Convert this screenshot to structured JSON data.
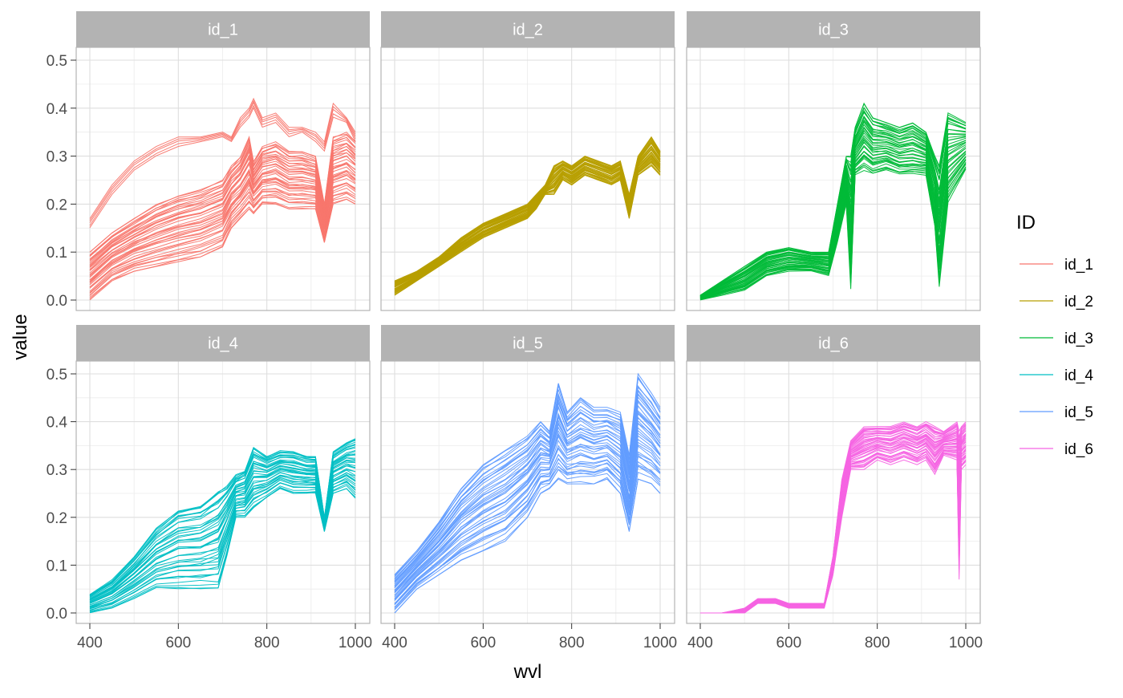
{
  "chart_data": {
    "type": "line",
    "facet": "small-multiples, 2 rows x 3 columns",
    "xlabel": "wvl",
    "ylabel": "value",
    "xlim": [
      400,
      1000
    ],
    "ylim": [
      0,
      0.5
    ],
    "x_ticks": [
      "400",
      "600",
      "800",
      "1000"
    ],
    "y_ticks": [
      "0.0",
      "0.1",
      "0.2",
      "0.3",
      "0.4",
      "0.5"
    ],
    "grid": true,
    "legend": {
      "title": "ID",
      "position": "right",
      "entries": [
        "id_1",
        "id_2",
        "id_3",
        "id_4",
        "id_5",
        "id_6"
      ]
    },
    "panels": [
      {
        "name": "id_1",
        "color": "#F8766D",
        "wavelengths": [
          400,
          450,
          500,
          550,
          600,
          650,
          700,
          720,
          740,
          760,
          770,
          790,
          820,
          850,
          880,
          910,
          930,
          950,
          980,
          1000
        ],
        "bands": [
          {
            "low": [
              0.0,
              0.04,
              0.06,
              0.07,
              0.08,
              0.09,
              0.11,
              0.15,
              0.17,
              0.19,
              0.18,
              0.2,
              0.2,
              0.19,
              0.19,
              0.19,
              0.12,
              0.2,
              0.21,
              0.2
            ],
            "high": [
              0.1,
              0.14,
              0.17,
              0.2,
              0.22,
              0.23,
              0.25,
              0.28,
              0.3,
              0.34,
              0.29,
              0.32,
              0.33,
              0.31,
              0.31,
              0.3,
              0.2,
              0.34,
              0.35,
              0.33
            ]
          },
          {
            "low": [
              0.15,
              0.22,
              0.27,
              0.3,
              0.32,
              0.33,
              0.34,
              0.33,
              0.36,
              0.38,
              0.4,
              0.36,
              0.37,
              0.34,
              0.35,
              0.33,
              0.31,
              0.38,
              0.37,
              0.33
            ],
            "high": [
              0.17,
              0.24,
              0.29,
              0.32,
              0.34,
              0.34,
              0.35,
              0.34,
              0.38,
              0.4,
              0.42,
              0.38,
              0.39,
              0.36,
              0.36,
              0.35,
              0.33,
              0.41,
              0.38,
              0.35
            ]
          }
        ]
      },
      {
        "name": "id_2",
        "color": "#B79F00",
        "wavelengths": [
          400,
          450,
          500,
          550,
          600,
          650,
          700,
          720,
          740,
          760,
          780,
          800,
          830,
          860,
          890,
          910,
          930,
          950,
          980,
          1000
        ],
        "bands": [
          {
            "low": [
              0.01,
              0.04,
              0.07,
              0.1,
              0.13,
              0.15,
              0.17,
              0.19,
              0.22,
              0.22,
              0.25,
              0.24,
              0.26,
              0.25,
              0.24,
              0.25,
              0.17,
              0.26,
              0.28,
              0.26
            ],
            "high": [
              0.04,
              0.06,
              0.09,
              0.13,
              0.16,
              0.18,
              0.2,
              0.22,
              0.24,
              0.28,
              0.29,
              0.28,
              0.3,
              0.29,
              0.28,
              0.29,
              0.22,
              0.3,
              0.34,
              0.31
            ]
          }
        ]
      },
      {
        "name": "id_3",
        "color": "#00BA38",
        "wavelengths": [
          400,
          450,
          500,
          550,
          600,
          650,
          690,
          710,
          730,
          740,
          750,
          770,
          790,
          820,
          850,
          880,
          910,
          930,
          940,
          960,
          1000
        ],
        "bands": [
          {
            "low": [
              0.0,
              0.01,
              0.02,
              0.05,
              0.06,
              0.06,
              0.05,
              0.12,
              0.2,
              0.02,
              0.26,
              0.27,
              0.26,
              0.27,
              0.26,
              0.26,
              0.26,
              0.15,
              0.02,
              0.2,
              0.27
            ],
            "high": [
              0.01,
              0.04,
              0.07,
              0.1,
              0.11,
              0.1,
              0.1,
              0.2,
              0.3,
              0.3,
              0.36,
              0.41,
              0.38,
              0.37,
              0.36,
              0.37,
              0.35,
              0.3,
              0.28,
              0.39,
              0.37
            ]
          }
        ]
      },
      {
        "name": "id_4",
        "color": "#00BFC4",
        "wavelengths": [
          400,
          450,
          500,
          550,
          600,
          650,
          690,
          710,
          730,
          750,
          770,
          800,
          830,
          860,
          890,
          910,
          930,
          950,
          980,
          1000
        ],
        "bands": [
          {
            "low": [
              0.0,
              0.01,
              0.03,
              0.05,
              0.05,
              0.05,
              0.05,
              0.12,
              0.2,
              0.2,
              0.22,
              0.24,
              0.26,
              0.25,
              0.25,
              0.25,
              0.17,
              0.25,
              0.26,
              0.24
            ],
            "high": [
              0.04,
              0.07,
              0.12,
              0.18,
              0.22,
              0.23,
              0.26,
              0.27,
              0.29,
              0.3,
              0.35,
              0.33,
              0.34,
              0.34,
              0.33,
              0.33,
              0.2,
              0.34,
              0.36,
              0.37
            ]
          }
        ]
      },
      {
        "name": "id_5",
        "color": "#619CFF",
        "wavelengths": [
          400,
          450,
          500,
          550,
          600,
          650,
          700,
          730,
          750,
          770,
          790,
          820,
          850,
          880,
          910,
          930,
          950,
          980,
          1000
        ],
        "bands": [
          {
            "low": [
              0.0,
              0.05,
              0.08,
              0.11,
              0.13,
              0.15,
              0.2,
              0.25,
              0.26,
              0.28,
              0.27,
              0.27,
              0.27,
              0.28,
              0.25,
              0.17,
              0.28,
              0.27,
              0.25
            ],
            "high": [
              0.08,
              0.13,
              0.19,
              0.26,
              0.31,
              0.34,
              0.37,
              0.4,
              0.38,
              0.48,
              0.42,
              0.45,
              0.43,
              0.43,
              0.42,
              0.33,
              0.5,
              0.46,
              0.43
            ]
          }
        ]
      },
      {
        "name": "id_6",
        "color": "#F564E3",
        "wavelengths": [
          400,
          450,
          500,
          530,
          550,
          570,
          600,
          650,
          680,
          700,
          720,
          740,
          770,
          800,
          830,
          860,
          890,
          910,
          930,
          950,
          980,
          985,
          990,
          1000
        ],
        "bands": [
          {
            "low": [
              0.0,
              0.0,
              0.0,
              0.02,
              0.02,
              0.02,
              0.01,
              0.01,
              0.01,
              0.08,
              0.2,
              0.3,
              0.3,
              0.32,
              0.31,
              0.32,
              0.31,
              0.32,
              0.29,
              0.33,
              0.32,
              0.07,
              0.3,
              0.31
            ],
            "high": [
              0.0,
              0.0,
              0.01,
              0.03,
              0.03,
              0.03,
              0.02,
              0.02,
              0.02,
              0.12,
              0.28,
              0.36,
              0.39,
              0.39,
              0.39,
              0.4,
              0.39,
              0.4,
              0.39,
              0.38,
              0.4,
              0.38,
              0.39,
              0.4
            ]
          }
        ]
      }
    ]
  }
}
